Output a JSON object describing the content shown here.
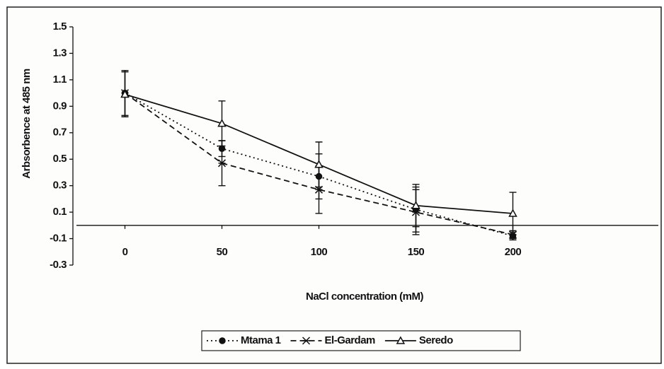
{
  "chart_data": {
    "type": "line",
    "x_label": "NaCl concentration (mM)",
    "y_label": "Arbsorbence at 485 nm",
    "x": [
      0,
      50,
      100,
      150,
      200
    ],
    "xlim": [
      -25,
      275
    ],
    "xticks": [
      0,
      50,
      100,
      150,
      200
    ],
    "ylim": [
      -0.3,
      1.5
    ],
    "yticks": [
      -0.3,
      -0.1,
      0.1,
      0.3,
      0.5,
      0.7,
      0.9,
      1.1,
      1.3,
      1.5
    ],
    "legend": "bottom",
    "series": [
      {
        "name": "Mtama 1",
        "color": "#111111",
        "dash": "dotted",
        "marker": "circle",
        "values": [
          1.0,
          0.58,
          0.37,
          0.12,
          -0.08
        ],
        "errors": [
          0.17,
          0.06,
          0.17,
          0.17,
          0.03
        ]
      },
      {
        "name": "El-Gardam",
        "color": "#111111",
        "dash": "dashed",
        "marker": "x",
        "values": [
          1.0,
          0.47,
          0.27,
          0.1,
          -0.07
        ],
        "errors": [
          0.17,
          0.17,
          0.18,
          0.17,
          0.03
        ]
      },
      {
        "name": "Seredo",
        "color": "#111111",
        "dash": "solid",
        "marker": "triangle",
        "values": [
          0.99,
          0.77,
          0.46,
          0.15,
          0.09
        ],
        "errors": [
          0.17,
          0.17,
          0.17,
          0.16,
          0.16
        ]
      }
    ]
  }
}
